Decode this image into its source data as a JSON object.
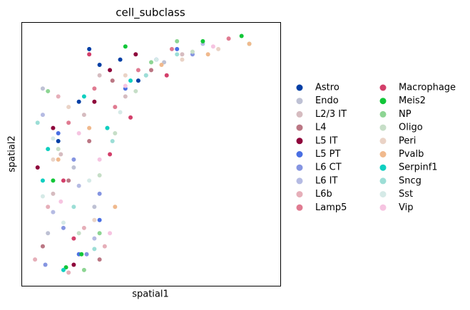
{
  "chart_data": {
    "type": "scatter",
    "title": "cell_subclass",
    "xlabel": "spatial1",
    "ylabel": "spatial2",
    "xlim": [
      0,
      100
    ],
    "ylim": [
      0,
      100
    ],
    "series": [
      {
        "name": "Astro",
        "color": "#023fa5",
        "x": [
          26,
          14,
          45,
          30,
          22,
          38
        ],
        "y": [
          90,
          55,
          78,
          84,
          70,
          86
        ]
      },
      {
        "name": "Endo",
        "color": "#bec1d4",
        "x": [
          10,
          20,
          33,
          55,
          8,
          28
        ],
        "y": [
          20,
          45,
          60,
          85,
          75,
          30
        ]
      },
      {
        "name": "L2/3 IT",
        "color": "#d6bcc0",
        "x": [
          15,
          24,
          40,
          62,
          12,
          30
        ],
        "y": [
          50,
          65,
          72,
          88,
          35,
          80
        ]
      },
      {
        "name": "L4",
        "color": "#bb7784",
        "x": [
          8,
          18,
          30,
          26,
          35,
          50
        ],
        "y": [
          15,
          40,
          10,
          55,
          78,
          82
        ]
      },
      {
        "name": "L5 IT",
        "color": "#8e063b",
        "x": [
          6,
          12,
          20,
          28,
          34,
          44
        ],
        "y": [
          45,
          60,
          8,
          70,
          82,
          88
        ]
      },
      {
        "name": "L5 PT",
        "color": "#4a6fe3",
        "x": [
          30,
          40,
          14,
          52,
          60,
          22
        ],
        "y": [
          25,
          75,
          58,
          86,
          90,
          12
        ]
      },
      {
        "name": "L6 CT",
        "color": "#8595e1",
        "x": [
          9,
          16,
          25,
          30,
          20,
          66
        ],
        "y": [
          8,
          22,
          12,
          35,
          48,
          88
        ]
      },
      {
        "name": "L6 IT",
        "color": "#b5bbe3",
        "x": [
          12,
          22,
          8,
          28,
          70,
          48
        ],
        "y": [
          28,
          38,
          65,
          18,
          92,
          80
        ]
      },
      {
        "name": "L6b",
        "color": "#e6afb9",
        "x": [
          5,
          10,
          18,
          24,
          32,
          14
        ],
        "y": [
          10,
          30,
          5,
          22,
          15,
          72
        ]
      },
      {
        "name": "Lamp5",
        "color": "#e07b91",
        "x": [
          18,
          28,
          36,
          45,
          58,
          80
        ],
        "y": [
          62,
          75,
          68,
          82,
          90,
          94
        ]
      },
      {
        "name": "Macrophage",
        "color": "#d33f6a",
        "x": [
          20,
          34,
          16,
          42,
          26,
          56
        ],
        "y": [
          18,
          50,
          40,
          64,
          88,
          80
        ]
      },
      {
        "name": "Meis2",
        "color": "#11c638",
        "x": [
          23,
          85,
          12,
          40,
          17,
          70
        ],
        "y": [
          12,
          95,
          40,
          91,
          7,
          93
        ]
      },
      {
        "name": "NP",
        "color": "#8dd593",
        "x": [
          10,
          60,
          30,
          88,
          24,
          50
        ],
        "y": [
          74,
          93,
          20,
          92,
          6,
          85
        ]
      },
      {
        "name": "Oligo",
        "color": "#c6dec7",
        "x": [
          22,
          36,
          14,
          66,
          44,
          30
        ],
        "y": [
          20,
          58,
          52,
          89,
          74,
          42
        ]
      },
      {
        "name": "Peri",
        "color": "#ead3c6",
        "x": [
          18,
          40,
          62,
          28,
          76,
          12
        ],
        "y": [
          68,
          80,
          86,
          25,
          90,
          48
        ]
      },
      {
        "name": "Pvalb",
        "color": "#f0b98d",
        "x": [
          14,
          26,
          36,
          54,
          72,
          88
        ],
        "y": [
          48,
          60,
          30,
          84,
          88,
          92
        ]
      },
      {
        "name": "Serpinf1",
        "color": "#0fcfc0",
        "x": [
          8,
          16,
          33,
          24,
          10,
          42
        ],
        "y": [
          40,
          6,
          60,
          72,
          52,
          78
        ]
      },
      {
        "name": "Sncg",
        "color": "#9cded6",
        "x": [
          20,
          35,
          6,
          48,
          28,
          60
        ],
        "y": [
          30,
          55,
          62,
          80,
          14,
          88
        ]
      },
      {
        "name": "Sst",
        "color": "#d5eae7",
        "x": [
          26,
          12,
          38,
          16,
          52,
          8
        ],
        "y": [
          40,
          56,
          66,
          24,
          86,
          34
        ]
      },
      {
        "name": "Vip",
        "color": "#f6c4e1",
        "x": [
          15,
          30,
          22,
          40,
          34,
          74
        ],
        "y": [
          32,
          48,
          58,
          76,
          20,
          91
        ]
      }
    ]
  }
}
